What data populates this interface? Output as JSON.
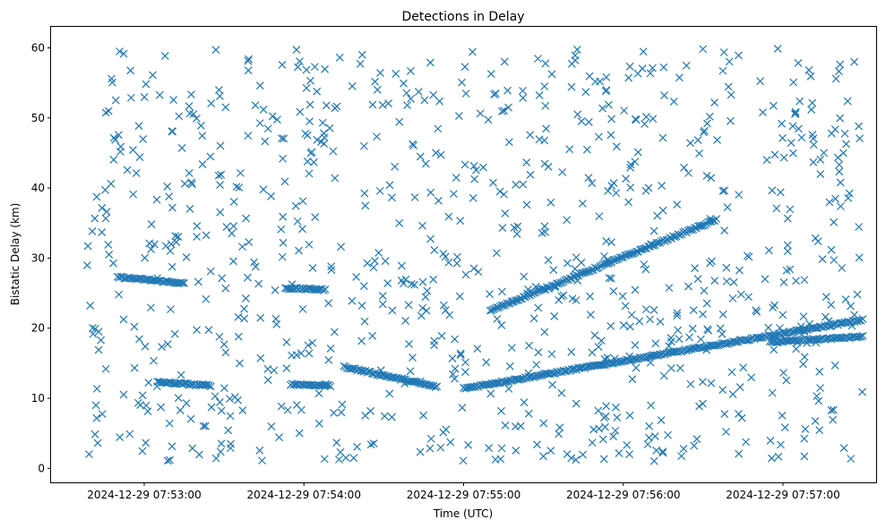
{
  "chart_data": {
    "type": "scatter",
    "title": "Detections in Delay",
    "xlabel": "Time (UTC)",
    "ylabel": "Bistatic Delay (km)",
    "marker": "x",
    "color": "#1f77b4",
    "grid": false,
    "x_range": [
      "2024-12-29 07:52:25",
      "2024-12-29 07:57:35"
    ],
    "y_range": [
      -2,
      63
    ],
    "x_ticks": [
      "2024-12-29 07:53:00",
      "2024-12-29 07:54:00",
      "2024-12-29 07:55:00",
      "2024-12-29 07:56:00",
      "2024-12-29 07:57:00"
    ],
    "y_ticks": [
      0,
      10,
      20,
      30,
      40,
      50,
      60
    ],
    "tracks": [
      {
        "x_start": "2024-12-29 07:52:50",
        "x_end": "2024-12-29 07:53:15",
        "y_start": 27.3,
        "y_end": 26.4
      },
      {
        "x_start": "2024-12-29 07:53:05",
        "x_end": "2024-12-29 07:53:25",
        "y_start": 12.3,
        "y_end": 11.8
      },
      {
        "x_start": "2024-12-29 07:53:55",
        "x_end": "2024-12-29 07:54:10",
        "y_start": 12.0,
        "y_end": 11.8
      },
      {
        "x_start": "2024-12-29 07:53:53",
        "x_end": "2024-12-29 07:54:08",
        "y_start": 25.7,
        "y_end": 25.5
      },
      {
        "x_start": "2024-12-29 07:54:15",
        "x_end": "2024-12-29 07:54:50",
        "y_start": 14.5,
        "y_end": 11.6
      },
      {
        "x_start": "2024-12-29 07:55:00",
        "x_end": "2024-12-29 07:57:30",
        "y_start": 11.4,
        "y_end": 21.2
      },
      {
        "x_start": "2024-12-29 07:55:10",
        "x_end": "2024-12-29 07:56:35",
        "y_start": 22.5,
        "y_end": 35.5
      },
      {
        "x_start": "2024-12-29 07:56:55",
        "x_end": "2024-12-29 07:57:30",
        "y_start": 18.0,
        "y_end": 18.8
      }
    ],
    "scattered_points": {
      "count_estimate": 900,
      "x_range": [
        "2024-12-29 07:52:38",
        "2024-12-29 07:57:30"
      ],
      "y_range": [
        1,
        60
      ]
    }
  }
}
